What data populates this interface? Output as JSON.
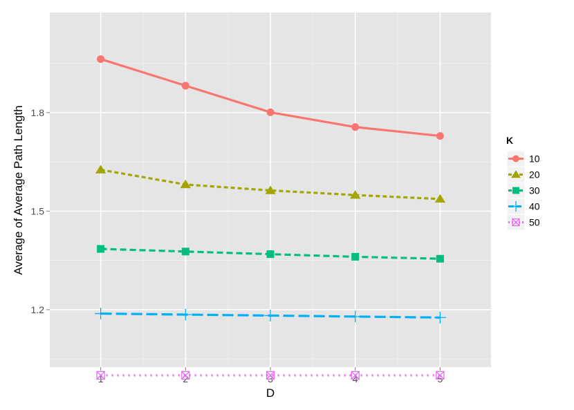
{
  "chart_data": {
    "type": "line",
    "xlabel": "D",
    "ylabel": "Average of Average Path Length",
    "x": [
      1,
      2,
      3,
      4,
      5
    ],
    "xlim": [
      0.4,
      5.6
    ],
    "ylim": [
      1.025,
      2.105
    ],
    "xticks": [
      "1",
      "2",
      "3",
      "4",
      "5"
    ],
    "yticks": [
      {
        "value": 1.2,
        "label": "1.2"
      },
      {
        "value": 1.5,
        "label": "1.5"
      },
      {
        "value": 1.8,
        "label": "1.8"
      }
    ],
    "y_minor_gridlines": [
      1.05,
      1.35,
      1.65,
      1.95
    ],
    "grid": true,
    "panel_background": "#e5e5e5",
    "legend": {
      "title": "K",
      "position": "right"
    },
    "series": [
      {
        "name": "10",
        "color": "#f8766d",
        "shape": "circle",
        "dash": "solid",
        "values": [
          1.963,
          1.882,
          1.801,
          1.756,
          1.729
        ]
      },
      {
        "name": "20",
        "color": "#a3a500",
        "shape": "triangle",
        "dash": "short-dash",
        "values": [
          1.626,
          1.581,
          1.563,
          1.549,
          1.537
        ]
      },
      {
        "name": "30",
        "color": "#00bf7d",
        "shape": "square",
        "dash": "dash",
        "values": [
          1.385,
          1.377,
          1.369,
          1.361,
          1.355
        ]
      },
      {
        "name": "40",
        "color": "#00b0f6",
        "shape": "plus",
        "dash": "long-dash",
        "values": [
          1.188,
          1.185,
          1.182,
          1.179,
          1.176
        ]
      },
      {
        "name": "50",
        "color": "#e76bf3",
        "shape": "square-cross",
        "dash": "dotted",
        "values": [
          1.0,
          1.0,
          1.0,
          1.0,
          1.0
        ]
      }
    ]
  }
}
